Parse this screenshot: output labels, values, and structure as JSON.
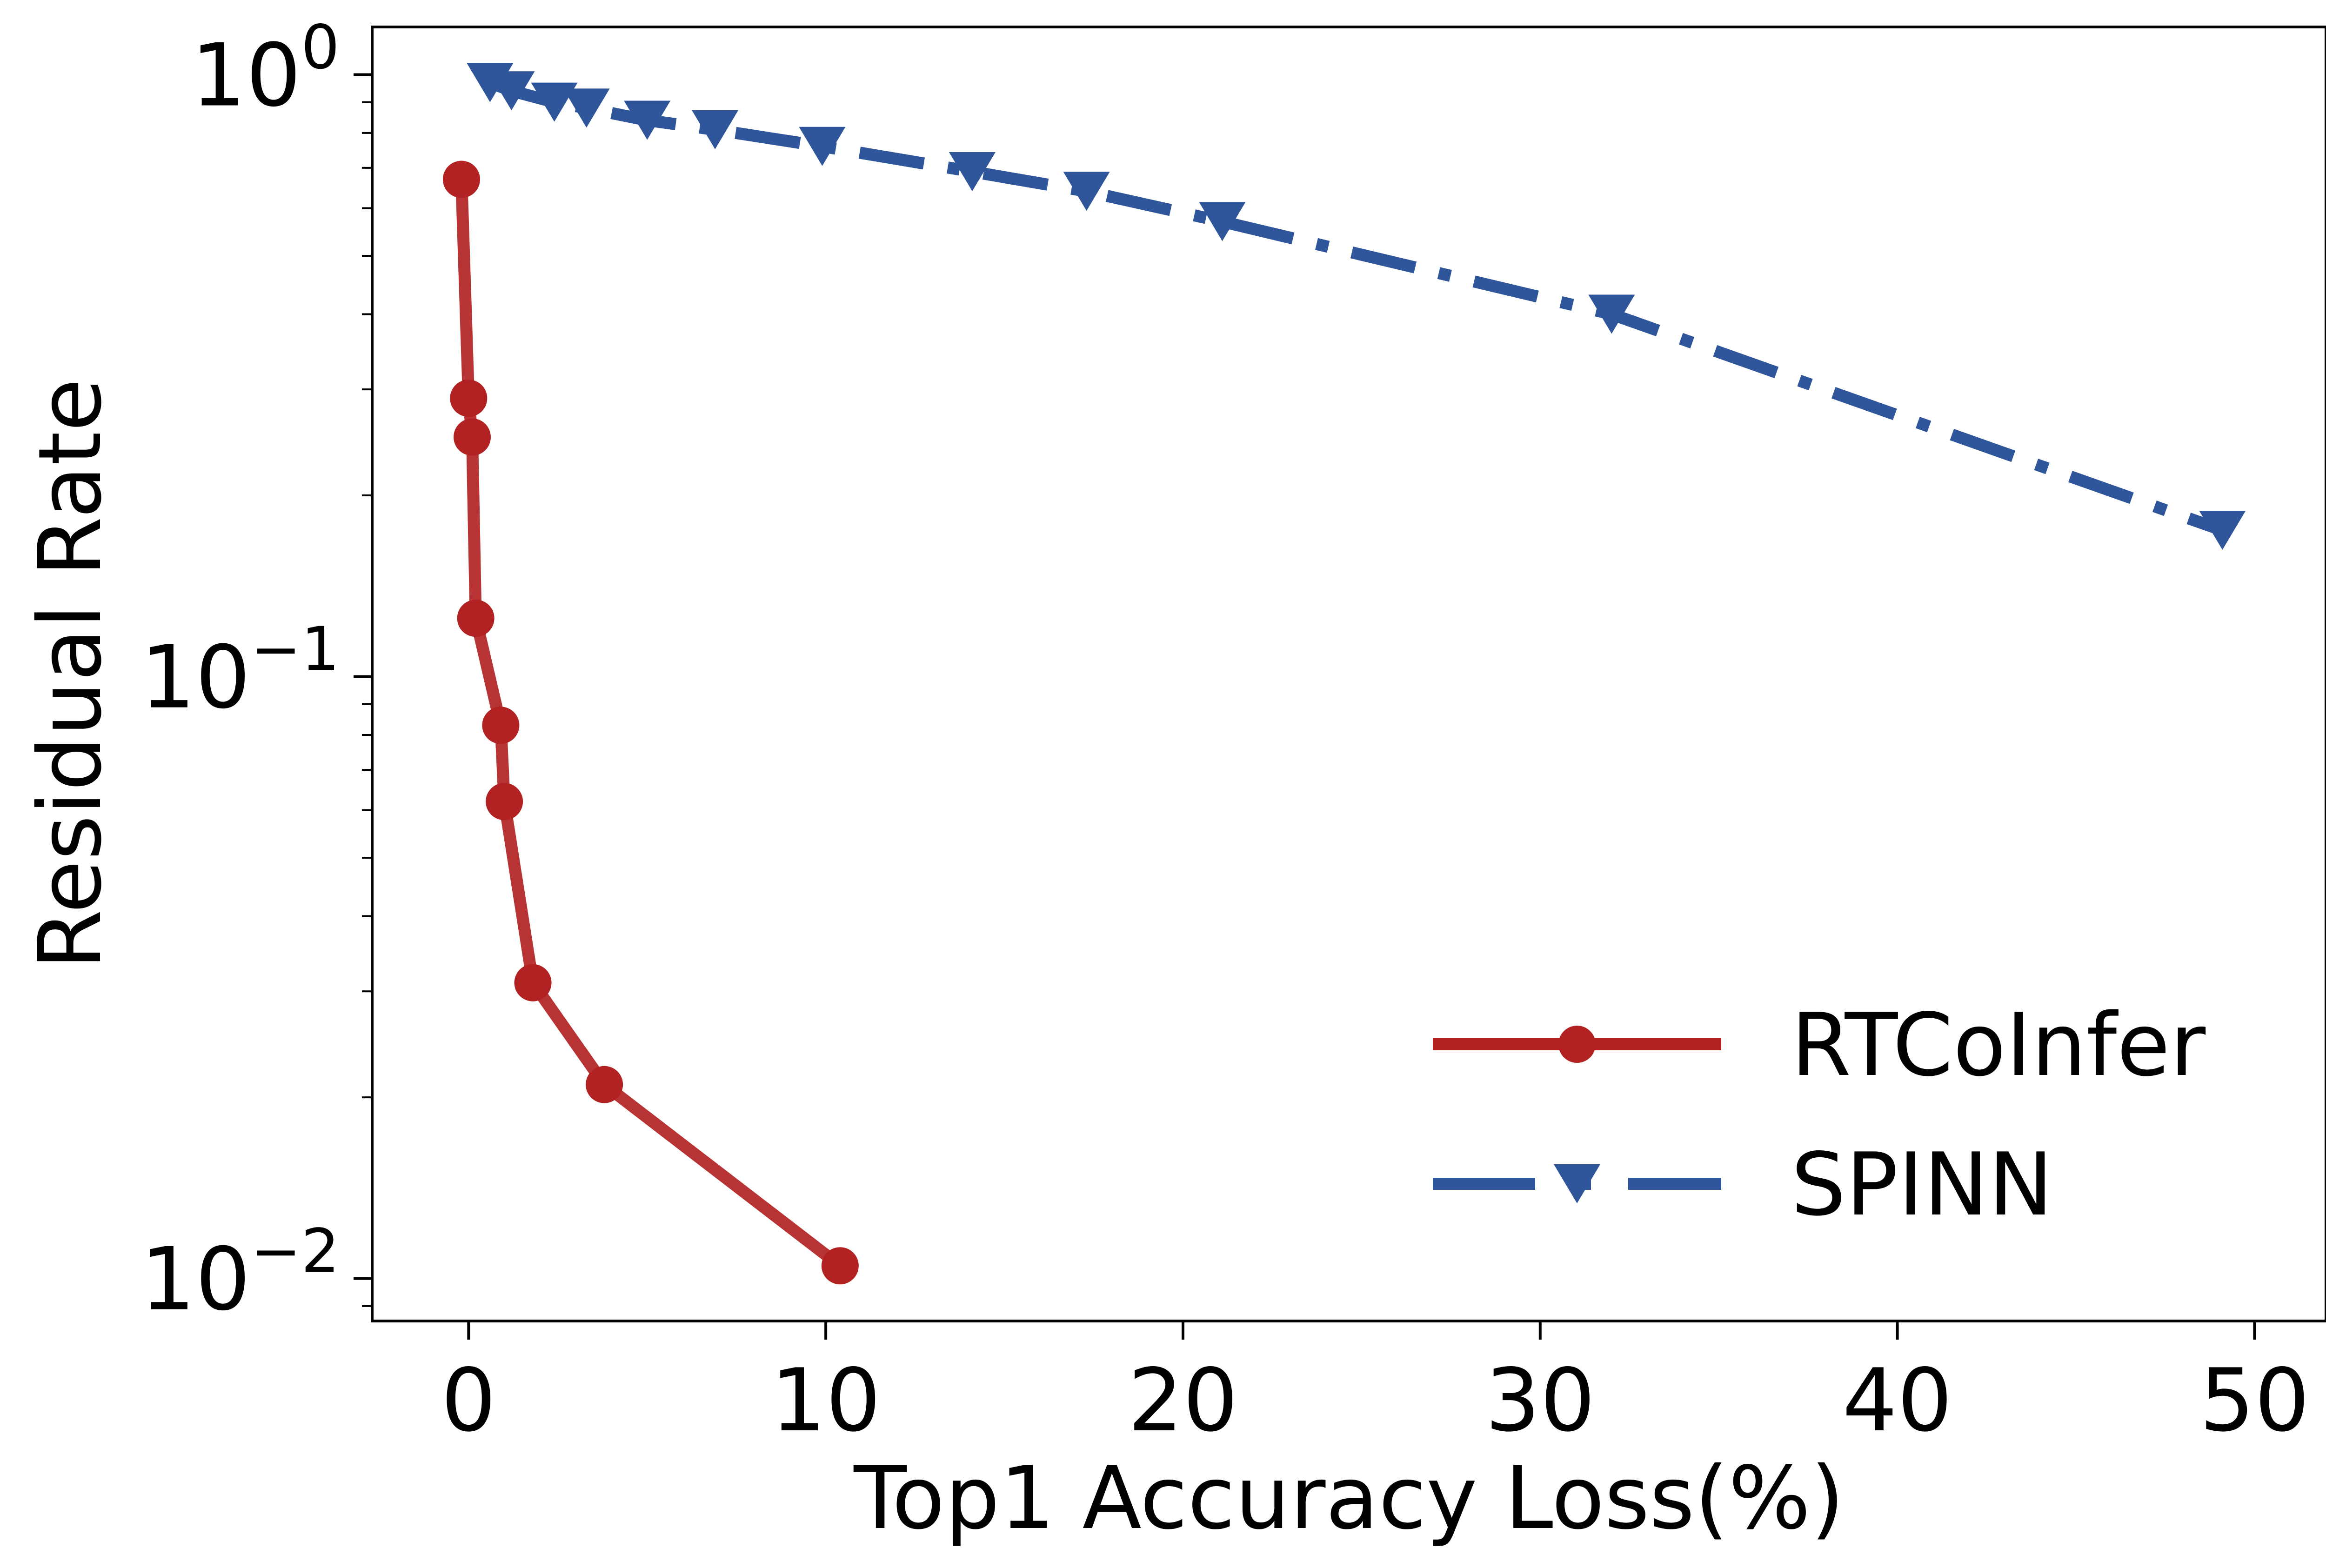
{
  "chart_data": {
    "type": "line",
    "title": "",
    "xlabel": "Top1 Accuracy Loss(%)",
    "ylabel": "Residual Rate",
    "xlim": [
      -2.7,
      52.0
    ],
    "ylim": [
      0.0085,
      1.2
    ],
    "yscale": "log",
    "x_ticks": [
      0,
      10,
      20,
      30,
      40,
      50
    ],
    "x_tick_labels": [
      "0",
      "10",
      "20",
      "30",
      "40",
      "50"
    ],
    "y_ticks": [
      1,
      0.1,
      0.01
    ],
    "y_tick_labels": [
      {
        "base": "10",
        "exp": "0"
      },
      {
        "base": "10",
        "exp": "−1"
      },
      {
        "base": "10",
        "exp": "−2"
      }
    ],
    "grid": false,
    "legend_position": "lower-right",
    "series": [
      {
        "name": "RTCoInfer",
        "color": "#b22222",
        "marker": "circle",
        "line_style": "solid",
        "x": [
          -0.2,
          0.0,
          0.1,
          0.2,
          0.9,
          1.0,
          1.8,
          3.8,
          10.4
        ],
        "y": [
          0.67,
          0.29,
          0.25,
          0.125,
          0.083,
          0.062,
          0.031,
          0.021,
          0.0105
        ]
      },
      {
        "name": "SPINN",
        "color": "#2f559b",
        "marker": "triangle-down",
        "line_style": "dashdot",
        "x": [
          0.6,
          1.2,
          2.4,
          3.3,
          5.0,
          6.9,
          9.9,
          14.1,
          17.3,
          21.1,
          32.0,
          49.1
        ],
        "y": [
          0.97,
          0.94,
          0.9,
          0.88,
          0.84,
          0.81,
          0.76,
          0.69,
          0.64,
          0.57,
          0.4,
          0.175
        ]
      }
    ]
  }
}
